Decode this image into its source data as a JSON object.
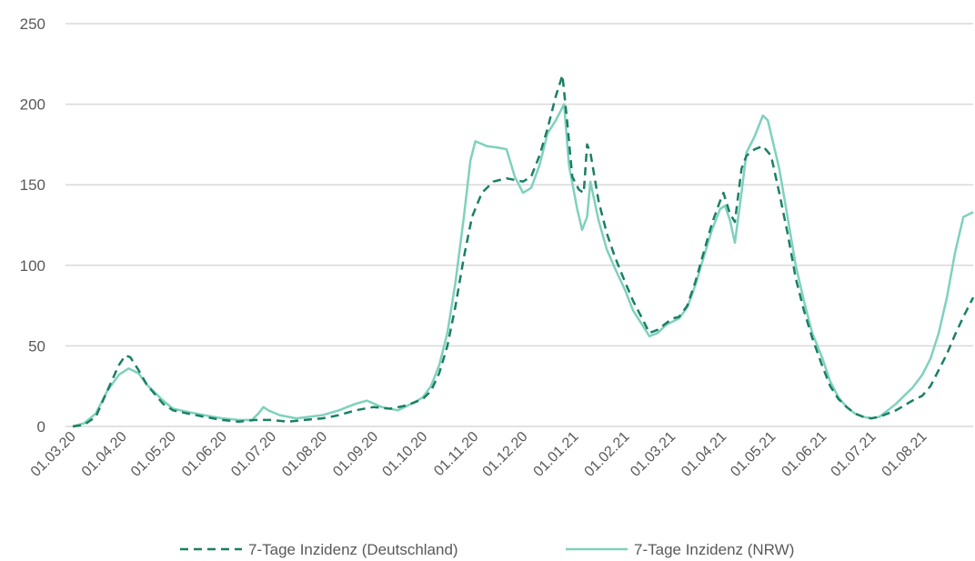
{
  "chart_data": {
    "type": "line",
    "title": "",
    "xlabel": "",
    "ylabel": "",
    "ylim": [
      0,
      250
    ],
    "y_ticks": [
      0,
      50,
      100,
      150,
      200,
      250
    ],
    "x_tick_labels": [
      "01.03.20",
      "01.04.20",
      "01.05.20",
      "01.06.20",
      "01.07.20",
      "01.08.20",
      "01.09.20",
      "01.10.20",
      "01.11.20",
      "01.12.20",
      "01.01.21",
      "01.02.21",
      "01.03.21",
      "01.04.21",
      "01.05.21",
      "01.06.21",
      "01.07.21",
      "01.08.21"
    ],
    "x_range": [
      "2020-03-01",
      "2021-08-31"
    ],
    "grid": "horizontal",
    "legend_position": "bottom",
    "series": [
      {
        "name": "7-Tage Inzidenz (Deutschland)",
        "style": "dashed",
        "color": "#1a7f64",
        "points": [
          [
            "2020-03-01",
            0
          ],
          [
            "2020-03-08",
            1
          ],
          [
            "2020-03-15",
            6
          ],
          [
            "2020-03-22",
            22
          ],
          [
            "2020-03-29",
            38
          ],
          [
            "2020-04-02",
            44
          ],
          [
            "2020-04-05",
            43
          ],
          [
            "2020-04-10",
            35
          ],
          [
            "2020-04-15",
            26
          ],
          [
            "2020-04-20",
            20
          ],
          [
            "2020-04-25",
            14
          ],
          [
            "2020-05-01",
            10
          ],
          [
            "2020-05-10",
            8
          ],
          [
            "2020-05-20",
            6
          ],
          [
            "2020-05-31",
            4
          ],
          [
            "2020-06-10",
            3
          ],
          [
            "2020-06-20",
            4
          ],
          [
            "2020-06-30",
            4
          ],
          [
            "2020-07-10",
            3
          ],
          [
            "2020-07-20",
            4
          ],
          [
            "2020-07-31",
            5
          ],
          [
            "2020-08-10",
            7
          ],
          [
            "2020-08-20",
            10
          ],
          [
            "2020-08-31",
            12
          ],
          [
            "2020-09-10",
            11
          ],
          [
            "2020-09-20",
            13
          ],
          [
            "2020-09-30",
            17
          ],
          [
            "2020-10-05",
            22
          ],
          [
            "2020-10-10",
            33
          ],
          [
            "2020-10-15",
            50
          ],
          [
            "2020-10-20",
            75
          ],
          [
            "2020-10-25",
            105
          ],
          [
            "2020-10-30",
            130
          ],
          [
            "2020-11-05",
            145
          ],
          [
            "2020-11-12",
            152
          ],
          [
            "2020-11-20",
            154
          ],
          [
            "2020-11-30",
            152
          ],
          [
            "2020-12-05",
            155
          ],
          [
            "2020-12-10",
            168
          ],
          [
            "2020-12-15",
            185
          ],
          [
            "2020-12-20",
            205
          ],
          [
            "2020-12-24",
            218
          ],
          [
            "2020-12-27",
            188
          ],
          [
            "2020-12-30",
            155
          ],
          [
            "2021-01-03",
            147
          ],
          [
            "2021-01-06",
            145
          ],
          [
            "2021-01-08",
            175
          ],
          [
            "2021-01-10",
            170
          ],
          [
            "2021-01-15",
            140
          ],
          [
            "2021-01-20",
            120
          ],
          [
            "2021-01-25",
            105
          ],
          [
            "2021-01-31",
            90
          ],
          [
            "2021-02-05",
            78
          ],
          [
            "2021-02-10",
            68
          ],
          [
            "2021-02-15",
            58
          ],
          [
            "2021-02-20",
            60
          ],
          [
            "2021-02-25",
            64
          ],
          [
            "2021-03-01",
            67
          ],
          [
            "2021-03-05",
            68
          ],
          [
            "2021-03-10",
            75
          ],
          [
            "2021-03-15",
            90
          ],
          [
            "2021-03-20",
            108
          ],
          [
            "2021-03-25",
            126
          ],
          [
            "2021-03-30",
            140
          ],
          [
            "2021-04-01",
            145
          ],
          [
            "2021-04-05",
            132
          ],
          [
            "2021-04-08",
            127
          ],
          [
            "2021-04-12",
            160
          ],
          [
            "2021-04-15",
            168
          ],
          [
            "2021-04-20",
            172
          ],
          [
            "2021-04-25",
            174
          ],
          [
            "2021-04-30",
            168
          ],
          [
            "2021-05-05",
            145
          ],
          [
            "2021-05-10",
            120
          ],
          [
            "2021-05-15",
            92
          ],
          [
            "2021-05-20",
            72
          ],
          [
            "2021-05-25",
            55
          ],
          [
            "2021-05-31",
            38
          ],
          [
            "2021-06-05",
            25
          ],
          [
            "2021-06-10",
            17
          ],
          [
            "2021-06-15",
            12
          ],
          [
            "2021-06-20",
            8
          ],
          [
            "2021-06-25",
            6
          ],
          [
            "2021-06-30",
            5
          ],
          [
            "2021-07-05",
            6
          ],
          [
            "2021-07-10",
            8
          ],
          [
            "2021-07-15",
            10
          ],
          [
            "2021-07-20",
            13
          ],
          [
            "2021-07-25",
            16
          ],
          [
            "2021-07-31",
            19
          ],
          [
            "2021-08-05",
            25
          ],
          [
            "2021-08-10",
            35
          ],
          [
            "2021-08-15",
            45
          ],
          [
            "2021-08-20",
            57
          ],
          [
            "2021-08-25",
            68
          ],
          [
            "2021-08-31",
            80
          ]
        ]
      },
      {
        "name": "7-Tage Inzidenz (NRW)",
        "style": "solid",
        "color": "#7fd1bd",
        "points": [
          [
            "2020-03-01",
            0
          ],
          [
            "2020-03-08",
            2
          ],
          [
            "2020-03-15",
            8
          ],
          [
            "2020-03-22",
            22
          ],
          [
            "2020-03-29",
            32
          ],
          [
            "2020-04-04",
            36
          ],
          [
            "2020-04-10",
            33
          ],
          [
            "2020-04-15",
            26
          ],
          [
            "2020-04-20",
            21
          ],
          [
            "2020-04-25",
            16
          ],
          [
            "2020-05-01",
            11
          ],
          [
            "2020-05-10",
            9
          ],
          [
            "2020-05-20",
            7
          ],
          [
            "2020-05-31",
            5
          ],
          [
            "2020-06-10",
            4
          ],
          [
            "2020-06-18",
            4
          ],
          [
            "2020-06-22",
            8
          ],
          [
            "2020-06-25",
            12
          ],
          [
            "2020-06-28",
            10
          ],
          [
            "2020-07-05",
            7
          ],
          [
            "2020-07-15",
            5
          ],
          [
            "2020-07-31",
            7
          ],
          [
            "2020-08-10",
            10
          ],
          [
            "2020-08-20",
            14
          ],
          [
            "2020-08-27",
            16
          ],
          [
            "2020-09-05",
            12
          ],
          [
            "2020-09-15",
            10
          ],
          [
            "2020-09-25",
            15
          ],
          [
            "2020-09-30",
            18
          ],
          [
            "2020-10-05",
            25
          ],
          [
            "2020-10-10",
            38
          ],
          [
            "2020-10-15",
            58
          ],
          [
            "2020-10-20",
            90
          ],
          [
            "2020-10-25",
            130
          ],
          [
            "2020-10-29",
            165
          ],
          [
            "2020-11-01",
            177
          ],
          [
            "2020-11-08",
            174
          ],
          [
            "2020-11-15",
            173
          ],
          [
            "2020-11-20",
            172
          ],
          [
            "2020-11-25",
            155
          ],
          [
            "2020-11-30",
            145
          ],
          [
            "2020-12-05",
            148
          ],
          [
            "2020-12-10",
            162
          ],
          [
            "2020-12-15",
            182
          ],
          [
            "2020-12-20",
            190
          ],
          [
            "2020-12-25",
            200
          ],
          [
            "2020-12-28",
            162
          ],
          [
            "2021-01-02",
            135
          ],
          [
            "2021-01-05",
            122
          ],
          [
            "2021-01-08",
            130
          ],
          [
            "2021-01-10",
            152
          ],
          [
            "2021-01-15",
            128
          ],
          [
            "2021-01-20",
            110
          ],
          [
            "2021-01-25",
            98
          ],
          [
            "2021-01-31",
            85
          ],
          [
            "2021-02-05",
            72
          ],
          [
            "2021-02-10",
            64
          ],
          [
            "2021-02-15",
            56
          ],
          [
            "2021-02-20",
            58
          ],
          [
            "2021-02-25",
            63
          ],
          [
            "2021-03-01",
            65
          ],
          [
            "2021-03-05",
            67
          ],
          [
            "2021-03-10",
            74
          ],
          [
            "2021-03-15",
            88
          ],
          [
            "2021-03-20",
            105
          ],
          [
            "2021-03-25",
            122
          ],
          [
            "2021-03-30",
            135
          ],
          [
            "2021-04-02",
            137
          ],
          [
            "2021-04-05",
            128
          ],
          [
            "2021-04-08",
            114
          ],
          [
            "2021-04-12",
            145
          ],
          [
            "2021-04-15",
            170
          ],
          [
            "2021-04-20",
            180
          ],
          [
            "2021-04-25",
            193
          ],
          [
            "2021-04-28",
            190
          ],
          [
            "2021-05-05",
            160
          ],
          [
            "2021-05-10",
            130
          ],
          [
            "2021-05-15",
            100
          ],
          [
            "2021-05-20",
            78
          ],
          [
            "2021-05-25",
            58
          ],
          [
            "2021-05-31",
            43
          ],
          [
            "2021-06-05",
            28
          ],
          [
            "2021-06-10",
            18
          ],
          [
            "2021-06-15",
            12
          ],
          [
            "2021-06-20",
            8
          ],
          [
            "2021-06-25",
            6
          ],
          [
            "2021-06-30",
            5
          ],
          [
            "2021-07-05",
            6
          ],
          [
            "2021-07-10",
            10
          ],
          [
            "2021-07-15",
            14
          ],
          [
            "2021-07-20",
            19
          ],
          [
            "2021-07-25",
            24
          ],
          [
            "2021-07-31",
            32
          ],
          [
            "2021-08-05",
            42
          ],
          [
            "2021-08-10",
            58
          ],
          [
            "2021-08-15",
            80
          ],
          [
            "2021-08-20",
            108
          ],
          [
            "2021-08-25",
            130
          ],
          [
            "2021-08-31",
            133
          ]
        ]
      }
    ]
  }
}
